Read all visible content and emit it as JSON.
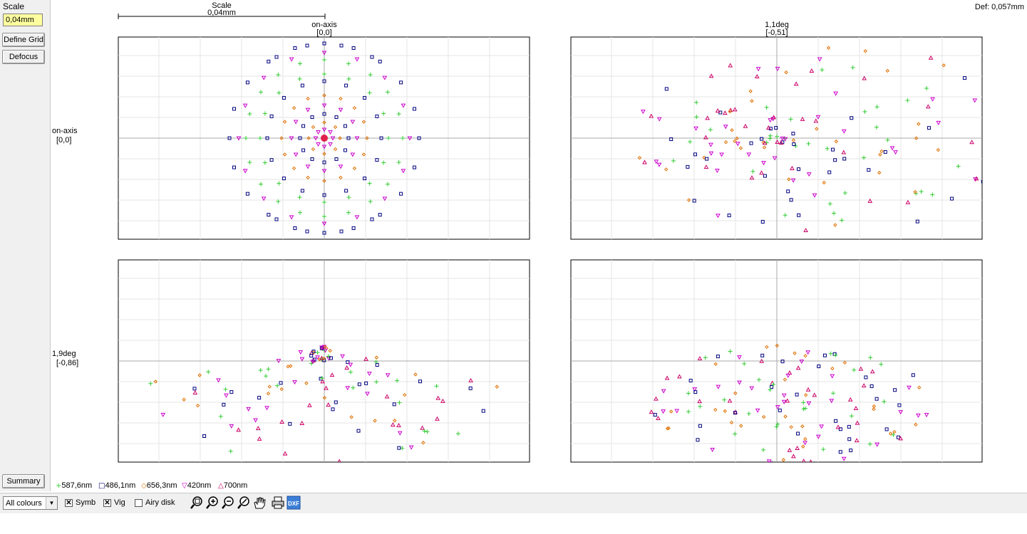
{
  "sidebar": {
    "scale_label": "Scale",
    "scale_value": "0,04mm",
    "define_grid": "Define Grid",
    "defocus": "Defocus",
    "summary": "Summary"
  },
  "header": {
    "scale_bar_label": "Scale",
    "scale_bar_value": "0,04mm",
    "def_text": "Def: 0,057mm"
  },
  "field_labels": {
    "col1_name": "on-axis",
    "col1_coord": "[0,0]",
    "col2_name": "1,1deg",
    "col2_coord": "[-0,51]",
    "row1_name": "on-axis",
    "row1_coord": "[0,0]",
    "row2_name": "1,9deg",
    "row2_coord": "[-0,86]"
  },
  "legend": [
    {
      "symbol": "+",
      "label": "587,6nm",
      "color": "#33cc33"
    },
    {
      "symbol": "□",
      "label": "486,1nm",
      "color": "#000080"
    },
    {
      "symbol": "◇",
      "label": "656,3nm",
      "color": "#e07000"
    },
    {
      "symbol": "▽",
      "label": "420nm",
      "color": "#cc00cc"
    },
    {
      "symbol": "△",
      "label": "700nm",
      "color": "#cc0066"
    }
  ],
  "toolbar": {
    "colour_select": "All colours",
    "symb_label": "Symb",
    "symb_checked": true,
    "vig_label": "Vig",
    "vig_checked": true,
    "airy_label": "Airy disk",
    "airy_checked": false,
    "icons": [
      "zoom-fit-icon",
      "zoom-in-icon",
      "zoom-out-icon",
      "zoom-reset-icon",
      "pan-hand-icon",
      "print-icon",
      "export-dxf-icon"
    ]
  },
  "colors": {
    "green": "#33cc33",
    "blue": "#000080",
    "orange": "#e07000",
    "magenta": "#cc00cc",
    "crimson": "#cc0066",
    "grid": "#e4e4e4",
    "axis": "#a8a8a8"
  }
}
